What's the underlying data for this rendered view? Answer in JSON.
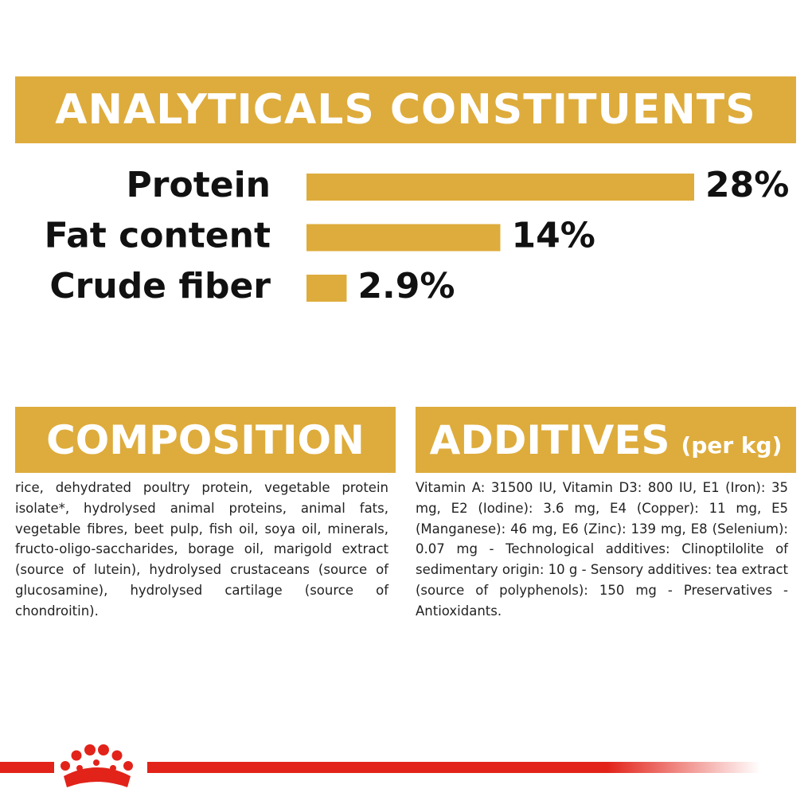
{
  "chart_data": {
    "type": "bar",
    "title": "ANALYTICALS CONSTITUENTS",
    "categories": [
      "Protein",
      "Fat content",
      "Crude fiber"
    ],
    "values": [
      28,
      14,
      2.9
    ],
    "value_labels": [
      "28%",
      "14%",
      "2.9%"
    ],
    "color": "#deac3c"
  },
  "composition": {
    "title": "COMPOSITION",
    "text": "rice, dehydrated poultry protein, vegetable protein isolate*, hydrolysed animal proteins, animal fats, vegetable fibres, beet pulp, fish oil, soya oil, minerals, fructo-oligo-saccharides, borage oil, marigold extract (source of lutein), hydrolysed crustaceans (source of glucosamine), hydrolysed cartilage (source of chondroitin)."
  },
  "additives": {
    "title": "ADDITIVES",
    "subtitle": "(per kg)",
    "text": "Vitamin A: 31500 IU, Vitamin D3: 800 IU, E1 (Iron): 35 mg, E2 (Iodine): 3.6 mg, E4 (Copper): 11 mg, E5 (Manganese): 46 mg, E6 (Zinc): 139 mg, E8 (Selenium): 0.07 mg - Technological additives: Clinoptilolite of sedimentary origin: 10 g - Sensory additives: tea extract (source of polyphenols): 150 mg - Preservatives - Antioxidants."
  }
}
